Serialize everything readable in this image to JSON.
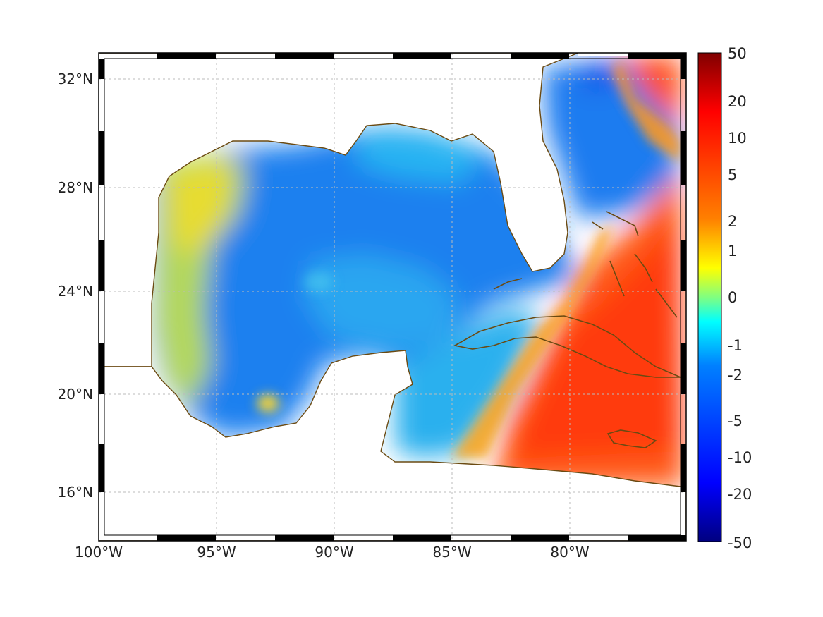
{
  "map": {
    "x_ticks": [
      "100°W",
      "95°W",
      "90°W",
      "85°W",
      "80°W"
    ],
    "y_ticks": [
      "32°N",
      "28°N",
      "24°N",
      "20°N",
      "16°N"
    ],
    "colorbar_ticks": [
      "50",
      "20",
      "10",
      "5",
      "2",
      "1",
      "0",
      "-1",
      "-2",
      "-5",
      "-10",
      "-20",
      "-50"
    ],
    "colorbar_colors": [
      "#800000",
      "#ff0000",
      "#ff8000",
      "#ffff00",
      "#80ff80",
      "#00ffff",
      "#0080ff",
      "#0000ff",
      "#000080"
    ],
    "coast_color": "#6b4a12",
    "grid": true
  }
}
